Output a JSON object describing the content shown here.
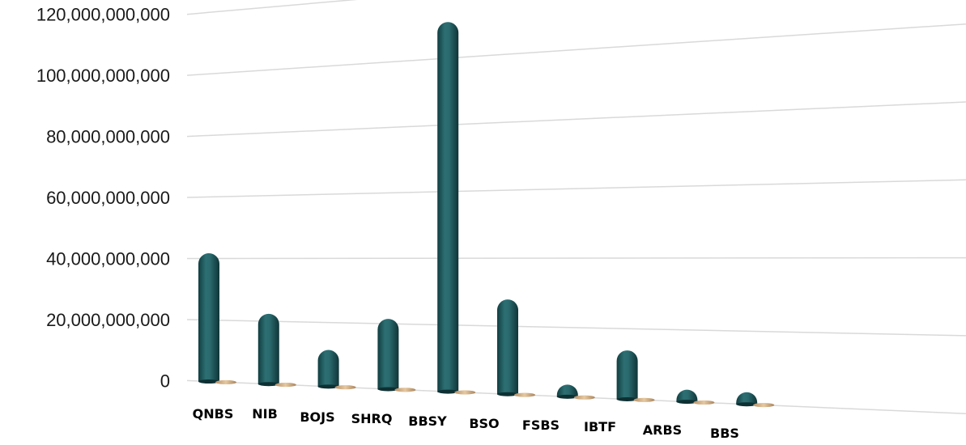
{
  "chart_data": {
    "type": "bar",
    "categories": [
      "QNBS",
      "NIB",
      "BOJS",
      "SHRQ",
      "BBSY",
      "BSO",
      "FSBS",
      "IBTF",
      "ARBS",
      "BBS"
    ],
    "series": [
      {
        "values": [
          42000000000,
          23000000000,
          12000000000,
          23000000000,
          121000000000,
          31000000000,
          1000000000,
          16000000000,
          500000000,
          1000000000
        ]
      },
      {
        "values": [
          0,
          0,
          0,
          0,
          0,
          0,
          0,
          0,
          0,
          0
        ]
      }
    ],
    "y_ticks": [
      "0",
      "20,000,000,000",
      "40,000,000,000",
      "60,000,000,000",
      "80,000,000,000",
      "100,000,000,000",
      "120,000,000,000"
    ],
    "ylim": [
      0,
      120000000000
    ],
    "grid": true,
    "legend": "none",
    "colors": {
      "primary": "#1f5a5e",
      "secondary": "#d8b48a",
      "grid": "#d9d9d9"
    }
  }
}
